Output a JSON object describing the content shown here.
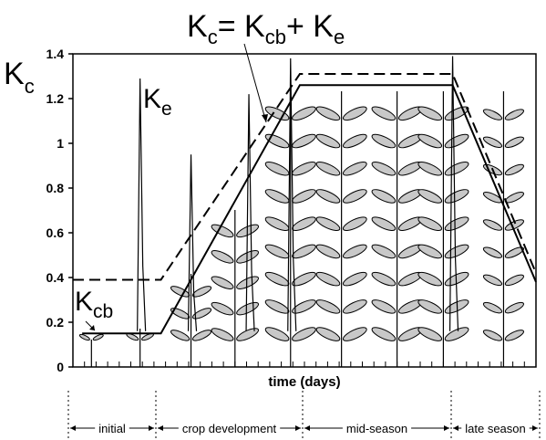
{
  "chart_data": {
    "type": "line",
    "equation": {
      "k1": "K",
      "s1": "c",
      "eq": "= ",
      "k2": "K",
      "s2": "cb",
      "plus": "+ ",
      "k3": "K",
      "s3": "e"
    },
    "ylabel": {
      "k": "K",
      "s": "c"
    },
    "ke_label": {
      "k": "K",
      "s": "e"
    },
    "kcb_label": {
      "k": "K",
      "s": "cb"
    },
    "xlabel": "time (days)",
    "ylim": [
      0,
      1.4
    ],
    "yticks": [
      "0",
      "0.2",
      "0.4",
      "0.6",
      "0.8",
      "1",
      "1.2",
      "1.4"
    ],
    "xlim": [
      0,
      100
    ],
    "stages": [
      {
        "label": "initial",
        "start": 0,
        "end": 19
      },
      {
        "label": "crop development",
        "start": 19,
        "end": 49
      },
      {
        "label": "mid-season",
        "start": 49,
        "end": 82
      },
      {
        "label": "late season",
        "start": 82,
        "end": 100
      }
    ],
    "series": [
      {
        "style": "solid",
        "x": [
          2,
          19,
          49,
          82,
          100
        ],
        "y": [
          0.15,
          0.15,
          1.26,
          1.26,
          0.38
        ]
      },
      {
        "style": "dashed",
        "x": [
          0,
          19,
          49,
          82,
          100
        ],
        "y": [
          0.39,
          0.39,
          1.31,
          1.31,
          0.42
        ]
      }
    ],
    "spikes": [
      {
        "x": 14.5,
        "peak": 1.29
      },
      {
        "x": 25.5,
        "peak": 0.95
      },
      {
        "x": 38,
        "peak": 1.22
      },
      {
        "x": 47,
        "peak": 1.38
      },
      {
        "x": 82,
        "peak": 1.39
      }
    ]
  }
}
